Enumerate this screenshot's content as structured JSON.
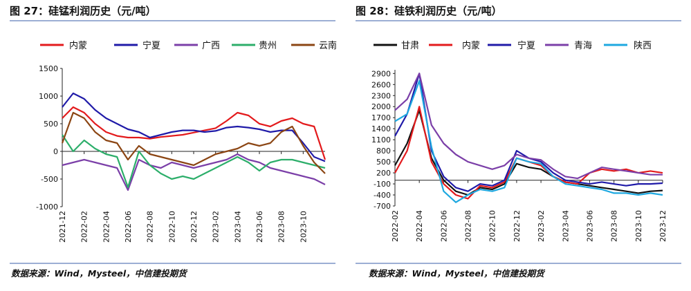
{
  "panels": [
    {
      "title": "图 27：硅锰利润历史（元/吨）",
      "source": "数据来源：Wind，Mysteel，中信建投期货"
    },
    {
      "title": "图 28：硅铁利润历史（元/吨）",
      "source": "数据来源：Wind，Mysteel，中信建投期货"
    }
  ],
  "chart_data": [
    {
      "type": "line",
      "title": "图 27：硅锰利润历史（元/吨）",
      "ylim": [
        -1000,
        1500
      ],
      "yticks": [
        -1000,
        -500,
        0,
        500,
        1000,
        1500
      ],
      "xlim": [
        "2021-12",
        "2023-12"
      ],
      "xticks": [
        "2021-12",
        "2022-02",
        "2022-04",
        "2022-06",
        "2022-08",
        "2022-10",
        "2022-12",
        "2023-02",
        "2023-04",
        "2023-06",
        "2023-08",
        "2023-10"
      ],
      "legend": "top",
      "grid": false,
      "series": [
        {
          "name": "内蒙",
          "color": "#e31a1c",
          "x": [
            "2021-12",
            "2022-01",
            "2022-02",
            "2022-03",
            "2022-04",
            "2022-05",
            "2022-06",
            "2022-07",
            "2022-08",
            "2022-09",
            "2022-10",
            "2022-11",
            "2022-12",
            "2023-01",
            "2023-02",
            "2023-03",
            "2023-04",
            "2023-05",
            "2023-06",
            "2023-07",
            "2023-08",
            "2023-09",
            "2023-10",
            "2023-11",
            "2023-12"
          ],
          "values": [
            600,
            800,
            700,
            500,
            350,
            280,
            250,
            250,
            230,
            260,
            280,
            300,
            340,
            380,
            420,
            550,
            700,
            650,
            500,
            450,
            550,
            600,
            500,
            450,
            -150
          ]
        },
        {
          "name": "宁夏",
          "color": "#1f1aa8",
          "x": [
            "2021-12",
            "2022-01",
            "2022-02",
            "2022-03",
            "2022-04",
            "2022-05",
            "2022-06",
            "2022-07",
            "2022-08",
            "2022-09",
            "2022-10",
            "2022-11",
            "2022-12",
            "2023-01",
            "2023-02",
            "2023-03",
            "2023-04",
            "2023-05",
            "2023-06",
            "2023-07",
            "2023-08",
            "2023-09",
            "2023-10",
            "2023-11",
            "2023-12"
          ],
          "values": [
            800,
            1050,
            950,
            750,
            600,
            500,
            400,
            350,
            250,
            300,
            350,
            380,
            380,
            350,
            370,
            430,
            450,
            430,
            400,
            350,
            380,
            380,
            150,
            -100,
            -180
          ]
        },
        {
          "name": "广西",
          "color": "#7b3fa8",
          "x": [
            "2021-12",
            "2022-01",
            "2022-02",
            "2022-03",
            "2022-04",
            "2022-05",
            "2022-06",
            "2022-07",
            "2022-08",
            "2022-09",
            "2022-10",
            "2022-11",
            "2022-12",
            "2023-01",
            "2023-02",
            "2023-03",
            "2023-04",
            "2023-05",
            "2023-06",
            "2023-07",
            "2023-08",
            "2023-09",
            "2023-10",
            "2023-11",
            "2023-12"
          ],
          "values": [
            -250,
            -200,
            -150,
            -200,
            -250,
            -300,
            -700,
            -150,
            -250,
            -300,
            -200,
            -250,
            -300,
            -250,
            -200,
            -150,
            -50,
            -150,
            -200,
            -300,
            -350,
            -400,
            -450,
            -500,
            -600
          ]
        },
        {
          "name": "贵州",
          "color": "#2cae6a",
          "x": [
            "2021-12",
            "2022-01",
            "2022-02",
            "2022-03",
            "2022-04",
            "2022-05",
            "2022-06",
            "2022-07",
            "2022-08",
            "2022-09",
            "2022-10",
            "2022-11",
            "2022-12",
            "2023-01",
            "2023-02",
            "2023-03",
            "2023-04",
            "2023-05",
            "2023-06",
            "2023-07",
            "2023-08",
            "2023-09",
            "2023-10",
            "2023-11",
            "2023-12"
          ],
          "values": [
            300,
            0,
            200,
            50,
            -50,
            -100,
            -650,
            0,
            -250,
            -400,
            -500,
            -450,
            -500,
            -400,
            -300,
            -200,
            -100,
            -200,
            -350,
            -200,
            -150,
            -150,
            -200,
            -250,
            -300
          ]
        },
        {
          "name": "云南",
          "color": "#8b4513",
          "x": [
            "2021-12",
            "2022-01",
            "2022-02",
            "2022-03",
            "2022-04",
            "2022-05",
            "2022-06",
            "2022-07",
            "2022-08",
            "2022-09",
            "2022-10",
            "2022-11",
            "2022-12",
            "2023-01",
            "2023-02",
            "2023-03",
            "2023-04",
            "2023-05",
            "2023-06",
            "2023-07",
            "2023-08",
            "2023-09",
            "2023-10",
            "2023-11",
            "2023-12"
          ],
          "values": [
            150,
            700,
            600,
            350,
            200,
            150,
            -150,
            100,
            -50,
            -100,
            -150,
            -200,
            -250,
            -150,
            -50,
            0,
            50,
            150,
            100,
            150,
            350,
            450,
            100,
            -200,
            -400
          ]
        }
      ]
    },
    {
      "type": "line",
      "title": "图 28：硅铁利润历史（元/吨）",
      "ylim": [
        -700,
        3000
      ],
      "yticks": [
        -700,
        -400,
        -100,
        200,
        500,
        800,
        1100,
        1400,
        1700,
        2000,
        2300,
        2600,
        2900
      ],
      "xlim": [
        "2022-02",
        "2023-12"
      ],
      "xticks": [
        "2022-02",
        "2022-04",
        "2022-06",
        "2022-08",
        "2022-10",
        "2022-12",
        "2023-02",
        "2023-04",
        "2023-06",
        "2023-08",
        "2023-10",
        "2023-12"
      ],
      "legend": "top",
      "grid": false,
      "series": [
        {
          "name": "甘肃",
          "color": "#111111",
          "x": [
            "2022-02",
            "2022-03",
            "2022-04",
            "2022-05",
            "2022-06",
            "2022-07",
            "2022-08",
            "2022-09",
            "2022-10",
            "2022-11",
            "2022-12",
            "2023-01",
            "2023-02",
            "2023-03",
            "2023-04",
            "2023-05",
            "2023-06",
            "2023-07",
            "2023-08",
            "2023-09",
            "2023-10",
            "2023-11",
            "2023-12"
          ],
          "values": [
            400,
            1000,
            1900,
            600,
            0,
            -300,
            -400,
            -200,
            -250,
            -100,
            450,
            350,
            300,
            100,
            -50,
            -100,
            -150,
            -200,
            -250,
            -300,
            -350,
            -300,
            -280
          ]
        },
        {
          "name": "内蒙",
          "color": "#e31a1c",
          "x": [
            "2022-02",
            "2022-03",
            "2022-04",
            "2022-05",
            "2022-06",
            "2022-07",
            "2022-08",
            "2022-09",
            "2022-10",
            "2022-11",
            "2022-12",
            "2023-01",
            "2023-02",
            "2023-03",
            "2023-04",
            "2023-05",
            "2023-06",
            "2023-07",
            "2023-08",
            "2023-09",
            "2023-10",
            "2023-11",
            "2023-12"
          ],
          "values": [
            200,
            800,
            2000,
            500,
            -100,
            -400,
            -500,
            -150,
            -200,
            -50,
            600,
            500,
            400,
            100,
            -50,
            -100,
            200,
            300,
            250,
            300,
            200,
            250,
            200
          ]
        },
        {
          "name": "宁夏",
          "color": "#1f1aa8",
          "x": [
            "2022-02",
            "2022-03",
            "2022-04",
            "2022-05",
            "2022-06",
            "2022-07",
            "2022-08",
            "2022-09",
            "2022-10",
            "2022-11",
            "2022-12",
            "2023-01",
            "2023-02",
            "2023-03",
            "2023-04",
            "2023-05",
            "2023-06",
            "2023-07",
            "2023-08",
            "2023-09",
            "2023-10",
            "2023-11",
            "2023-12"
          ],
          "values": [
            1200,
            1800,
            2900,
            800,
            100,
            -200,
            -300,
            -100,
            -150,
            0,
            800,
            600,
            500,
            200,
            0,
            -50,
            -100,
            -50,
            -100,
            -150,
            -100,
            -100,
            -80
          ]
        },
        {
          "name": "青海",
          "color": "#7b3fa8",
          "x": [
            "2022-02",
            "2022-03",
            "2022-04",
            "2022-05",
            "2022-06",
            "2022-07",
            "2022-08",
            "2022-09",
            "2022-10",
            "2022-11",
            "2022-12",
            "2023-01",
            "2023-02",
            "2023-03",
            "2023-04",
            "2023-05",
            "2023-06",
            "2023-07",
            "2023-08",
            "2023-09",
            "2023-10",
            "2023-11",
            "2023-12"
          ],
          "values": [
            1900,
            2200,
            2900,
            1500,
            1000,
            700,
            500,
            400,
            300,
            400,
            700,
            600,
            550,
            300,
            100,
            50,
            200,
            350,
            300,
            250,
            200,
            150,
            150
          ]
        },
        {
          "name": "陕西",
          "color": "#1ea8e0",
          "x": [
            "2022-02",
            "2022-03",
            "2022-04",
            "2022-05",
            "2022-06",
            "2022-07",
            "2022-08",
            "2022-09",
            "2022-10",
            "2022-11",
            "2022-12",
            "2023-01",
            "2023-02",
            "2023-03",
            "2023-04",
            "2023-05",
            "2023-06",
            "2023-07",
            "2023-08",
            "2023-09",
            "2023-10",
            "2023-11",
            "2023-12"
          ],
          "values": [
            1600,
            1800,
            2700,
            900,
            -300,
            -600,
            -400,
            -250,
            -300,
            -200,
            600,
            500,
            450,
            100,
            -100,
            -150,
            -200,
            -250,
            -350,
            -350,
            -400,
            -350,
            -400
          ]
        }
      ]
    }
  ]
}
